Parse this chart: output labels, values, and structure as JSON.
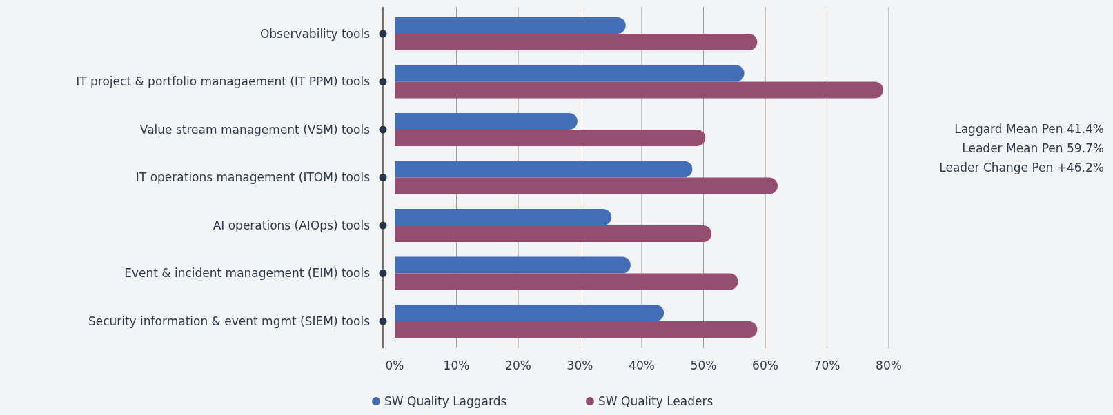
{
  "chart_data": {
    "type": "bar",
    "orientation": "horizontal",
    "categories": [
      "Observability tools",
      "IT project & portfolio managaement (IT PPM) tools",
      "Value stream management (VSM) tools",
      "IT operations management (ITOM) tools",
      "AI operations (AIOps) tools",
      "Event & incident management (EIM) tools",
      "Security information & event mgmt (SIEM) tools"
    ],
    "series": [
      {
        "name": "SW Quality Laggards",
        "color": "#436eb7",
        "values": [
          37.4,
          56.6,
          29.6,
          48.2,
          35.1,
          38.2,
          43.6
        ]
      },
      {
        "name": "SW Quality Leaders",
        "color": "#934e70",
        "values": [
          58.7,
          79.1,
          50.3,
          62.0,
          51.3,
          55.6,
          58.7
        ]
      }
    ],
    "xlim": [
      0,
      80
    ],
    "xticks": [
      {
        "value": 0,
        "label": "0%"
      },
      {
        "value": 10,
        "label": "10%"
      },
      {
        "value": 20,
        "label": "20%"
      },
      {
        "value": 30,
        "label": "30%"
      },
      {
        "value": 40,
        "label": "40%"
      },
      {
        "value": 50,
        "label": "50%"
      },
      {
        "value": 60,
        "label": "60%"
      },
      {
        "value": 70,
        "label": "70%"
      },
      {
        "value": 80,
        "label": "80%"
      }
    ],
    "grid": "x",
    "legend": "bottom",
    "annotations": [
      "Laggard Mean Pen 41.4%",
      "Leader Mean Pen 59.7%",
      "Leader Change Pen +46.2%"
    ]
  }
}
